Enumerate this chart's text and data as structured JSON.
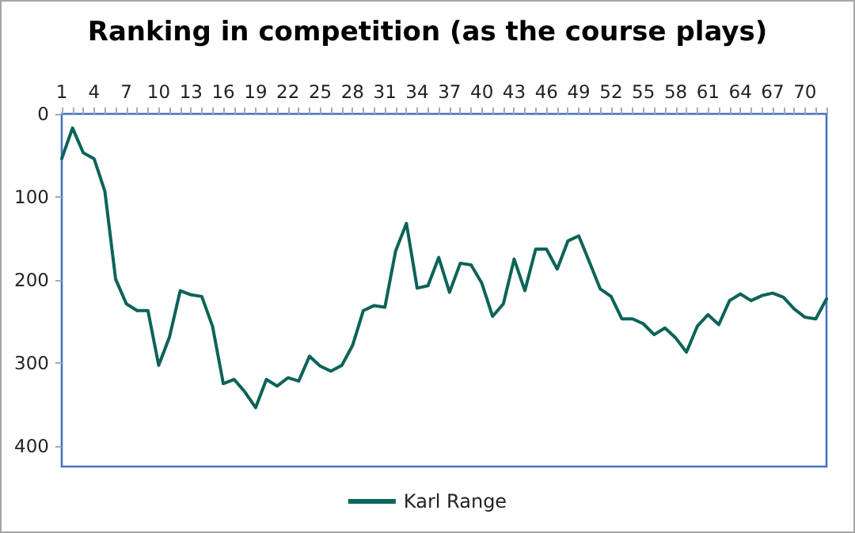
{
  "chart_data": {
    "type": "line",
    "title": "Ranking in competition (as the course plays)",
    "categories": [
      "1",
      null,
      null,
      "4",
      null,
      null,
      "7",
      null,
      null,
      "10",
      null,
      null,
      "13",
      null,
      null,
      "16",
      null,
      null,
      "19",
      null,
      null,
      "22",
      null,
      null,
      "25",
      null,
      null,
      "28",
      null,
      null,
      "31",
      null,
      null,
      "34",
      null,
      null,
      "37",
      null,
      null,
      "40",
      null,
      null,
      "43",
      null,
      null,
      "46",
      null,
      null,
      "49",
      null,
      null,
      "52",
      null,
      null,
      "55",
      null,
      null,
      "58",
      null,
      null,
      "61",
      null,
      null,
      "64",
      null,
      null,
      "67",
      null,
      null,
      "70",
      null,
      null
    ],
    "series": [
      {
        "name": "Karl Range",
        "color": "#0b6359",
        "values": [
          54,
          17,
          47,
          54,
          93,
          199,
          229,
          237,
          237,
          303,
          269,
          213,
          218,
          220,
          256,
          325,
          320,
          335,
          354,
          320,
          328,
          318,
          322,
          292,
          304,
          310,
          303,
          279,
          237,
          231,
          233,
          165,
          132,
          210,
          207,
          173,
          215,
          180,
          182,
          204,
          244,
          229,
          175,
          213,
          163,
          163,
          187,
          153,
          147,
          179,
          211,
          220,
          247,
          247,
          253,
          266,
          258,
          270,
          287,
          256,
          242,
          254,
          225,
          217,
          225,
          219,
          216,
          221,
          235,
          245,
          247,
          223
        ]
      }
    ],
    "ylim": [
      425,
      0
    ],
    "yticks": [
      0,
      100,
      200,
      300,
      400
    ],
    "legend": "bottom",
    "marker": "none",
    "line_style": "solid"
  }
}
